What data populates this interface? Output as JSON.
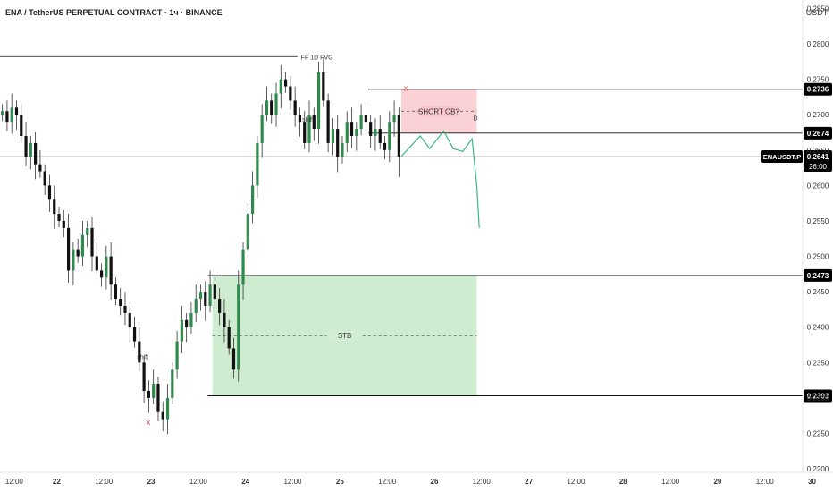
{
  "header": {
    "title": "ENA / TetherUS PERPETUAL CONTRACT · 1ч · BINANCE",
    "currency": "USDT"
  },
  "colors": {
    "up": "#2f8a4d",
    "down": "#111111",
    "wick": "#333333",
    "bear_zone": "#f5a3aa",
    "bull_zone": "#9fd8a2",
    "projection": "#3bb87e",
    "marker": "#e0454e"
  },
  "chart_data": {
    "type": "candlestick",
    "y_axis": {
      "range": [
        0.2195,
        0.2862
      ],
      "ticks": [
        "0,2200",
        "0,2250",
        "0,2300",
        "0,2350",
        "0,2400",
        "0,2450",
        "0,2500",
        "0,2550",
        "0,2600",
        "0,2650",
        "0,2700",
        "0,2750",
        "0,2800",
        "0,2850"
      ]
    },
    "x_axis": {
      "range": [
        0,
        170
      ],
      "ticks": [
        {
          "i": 3,
          "label": "12:00"
        },
        {
          "i": 12,
          "label": "22"
        },
        {
          "i": 22,
          "label": "12:00"
        },
        {
          "i": 32,
          "label": "23"
        },
        {
          "i": 42,
          "label": "12:00"
        },
        {
          "i": 52,
          "label": "24"
        },
        {
          "i": 62,
          "label": "12:00"
        },
        {
          "i": 72,
          "label": "25"
        },
        {
          "i": 82,
          "label": "12:00"
        },
        {
          "i": 92,
          "label": "26"
        },
        {
          "i": 102,
          "label": "12:00"
        },
        {
          "i": 112,
          "label": "27"
        },
        {
          "i": 122,
          "label": "12:00"
        },
        {
          "i": 132,
          "label": "28"
        },
        {
          "i": 142,
          "label": "12:00"
        },
        {
          "i": 152,
          "label": "29"
        },
        {
          "i": 162,
          "label": "12:00"
        },
        {
          "i": 172,
          "label": "30"
        }
      ]
    },
    "candles_close": [
      0.2705,
      0.269,
      0.271,
      0.27,
      0.267,
      0.264,
      0.266,
      0.263,
      0.262,
      0.26,
      0.258,
      0.256,
      0.255,
      0.254,
      0.248,
      0.251,
      0.25,
      0.253,
      0.254,
      0.25,
      0.248,
      0.247,
      0.25,
      0.246,
      0.244,
      0.243,
      0.242,
      0.24,
      0.238,
      0.235,
      0.231,
      0.23,
      0.232,
      0.228,
      0.227,
      0.23,
      0.234,
      0.238,
      0.241,
      0.24,
      0.242,
      0.244,
      0.245,
      0.243,
      0.246,
      0.244,
      0.242,
      0.24,
      0.237,
      0.234,
      0.246,
      0.251,
      0.256,
      0.26,
      0.266,
      0.27,
      0.272,
      0.27,
      0.273,
      0.275,
      0.274,
      0.272,
      0.27,
      0.269,
      0.266,
      0.27,
      0.268,
      0.276,
      0.272,
      0.266,
      0.268,
      0.264,
      0.266,
      0.269,
      0.267,
      0.268,
      0.27,
      0.269,
      0.267,
      0.268,
      0.266,
      0.265,
      0.269,
      0.27,
      0.2641
    ],
    "candles_open_first": 0.27,
    "last_candle_low": 0.2612,
    "levels": [
      {
        "price": 0.2736,
        "label": "0,2736"
      },
      {
        "price": 0.2674,
        "label": "0,2674"
      },
      {
        "price": 0.2473,
        "label": "0,2473"
      },
      {
        "price": 0.2303,
        "label": "0,2303"
      }
    ],
    "ff_level": {
      "price": 0.2782,
      "label": "FF 1D FVG"
    },
    "current_price": {
      "price": 0.2641,
      "symbol": "ENAUSDT.P",
      "label": "0,2641",
      "countdown": "26:00"
    },
    "zones": [
      {
        "name": "SHORT OB?",
        "from": 0.2674,
        "to": 0.2736,
        "x_start": 85,
        "x_end": 101,
        "mid": 0.2705,
        "kind": "bear",
        "tag": "D"
      },
      {
        "name": "STB",
        "from": 0.2303,
        "to": 0.2473,
        "x_start": 45,
        "x_end": 101,
        "mid": 0.2388,
        "kind": "bull"
      }
    ],
    "annotations": [
      {
        "text": "shift",
        "x": 64,
        "price": 0.269
      },
      {
        "text": "shift",
        "x": 29,
        "price": 0.2355
      }
    ],
    "markers": [
      {
        "text": "x",
        "x": 31,
        "price": 0.2262
      },
      {
        "text": "x",
        "x": 85.5,
        "price": 0.2734
      }
    ],
    "projection": [
      [
        85,
        0.2641
      ],
      [
        89,
        0.267
      ],
      [
        91,
        0.2652
      ],
      [
        94,
        0.2677
      ],
      [
        96,
        0.2652
      ],
      [
        98,
        0.2648
      ],
      [
        100,
        0.2666
      ],
      [
        101,
        0.26
      ],
      [
        101.5,
        0.254
      ]
    ]
  }
}
